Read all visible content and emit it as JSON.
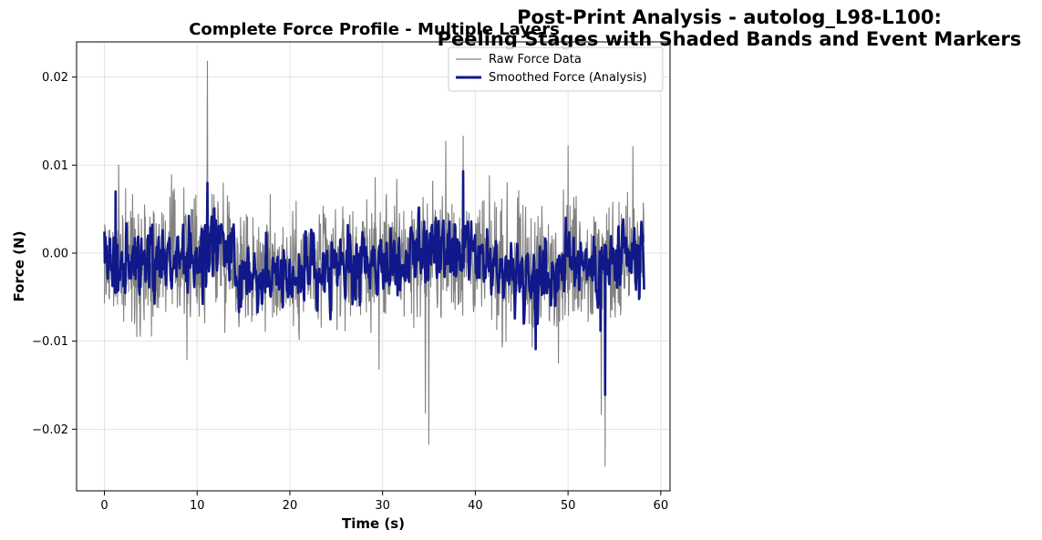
{
  "figure": {
    "suptitle_lines": [
      "Post-Print Analysis - autolog_L98-L100:",
      "Peeling Stages with Shaded Bands and Event Markers"
    ]
  },
  "chart_data": {
    "type": "line",
    "title": "Complete Force Profile - Multiple Layers",
    "xlabel": "Time (s)",
    "ylabel": "Force (N)",
    "xlim": [
      -3,
      61
    ],
    "ylim": [
      -0.027,
      0.024
    ],
    "xticks": [
      0,
      10,
      20,
      30,
      40,
      50,
      60
    ],
    "xtick_labels": [
      "0",
      "10",
      "20",
      "30",
      "40",
      "50",
      "60"
    ],
    "yticks": [
      -0.02,
      -0.01,
      0.0,
      0.01,
      0.02
    ],
    "ytick_labels": [
      "−0.02",
      "−0.01",
      "0.00",
      "0.01",
      "0.02"
    ],
    "grid": true,
    "legend_placement": "top-right",
    "series": [
      {
        "name": "Raw Force Data",
        "color": "#808080",
        "style": "thin",
        "x_range": [
          0,
          58.2
        ],
        "points": 1400,
        "noise_amplitude": 0.0035,
        "spikes": [
          {
            "x": 11.1,
            "y": 0.0218
          },
          {
            "x": 34.6,
            "y": -0.0182
          },
          {
            "x": 35.0,
            "y": -0.0217
          },
          {
            "x": 38.7,
            "y": 0.0133
          },
          {
            "x": 53.6,
            "y": -0.0183
          },
          {
            "x": 54.0,
            "y": -0.0242
          },
          {
            "x": 57.0,
            "y": 0.0121
          },
          {
            "x": 29.6,
            "y": -0.0132
          },
          {
            "x": 50.0,
            "y": 0.0122
          },
          {
            "x": 36.8,
            "y": 0.0127
          },
          {
            "x": 8.9,
            "y": -0.0121
          }
        ]
      },
      {
        "name": "Smoothed Force (Analysis)",
        "color": "#10188a",
        "style": "thick",
        "x_range": [
          0,
          58.2
        ],
        "points": 1400,
        "noise_amplitude": 0.0028,
        "spikes": [
          {
            "x": 11.1,
            "y": 0.008
          },
          {
            "x": 38.7,
            "y": 0.0093
          },
          {
            "x": 54.0,
            "y": -0.0161
          },
          {
            "x": 46.5,
            "y": -0.0109
          },
          {
            "x": 53.5,
            "y": -0.0088
          },
          {
            "x": 1.2,
            "y": 0.007
          }
        ]
      }
    ]
  }
}
